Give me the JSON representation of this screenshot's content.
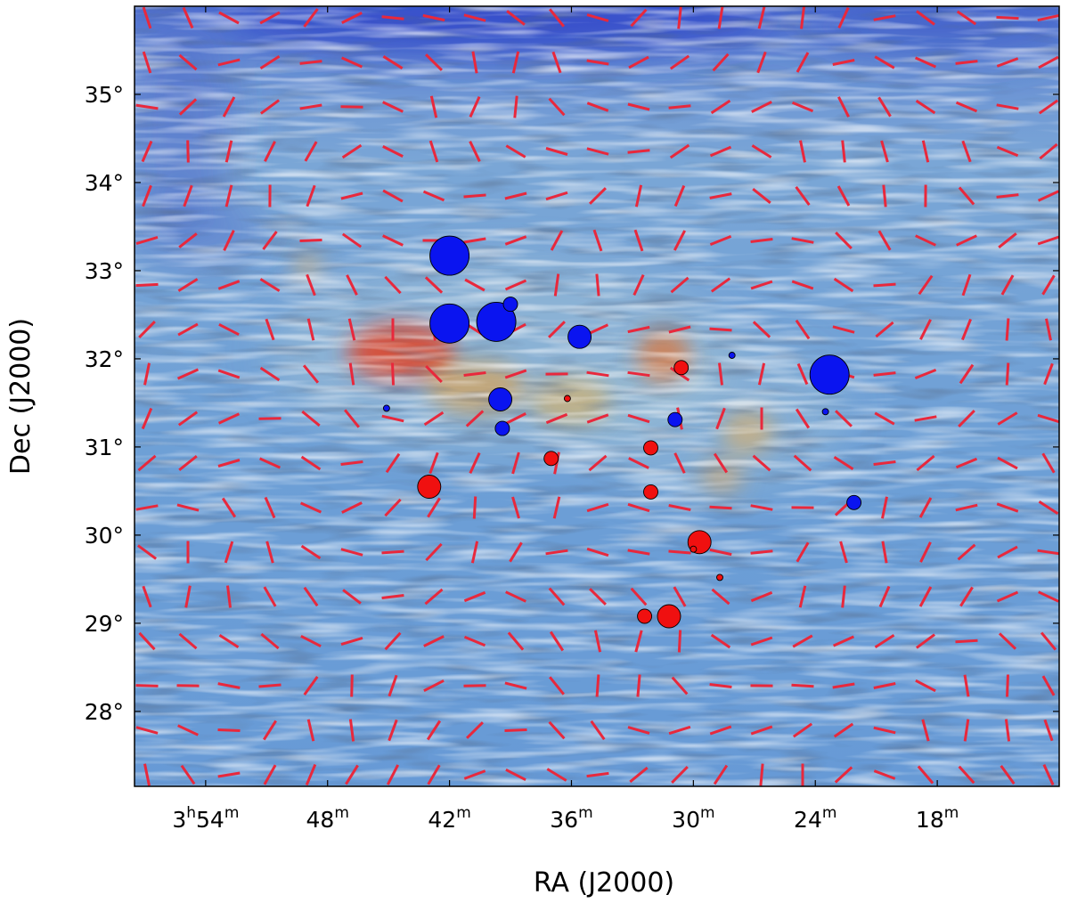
{
  "chart_data": {
    "type": "scatter",
    "xlabel": "RA (J2000)",
    "ylabel": "Dec (J2000)",
    "x_unit": "minutes of RA (3h)",
    "xlim": [
      57.5,
      12.0
    ],
    "ylim": [
      27.15,
      36.0
    ],
    "x_ticks": [
      {
        "value": 54,
        "label_main": "3",
        "label_sup1": "h",
        "label_mid": "54",
        "label_sup2": "m"
      },
      {
        "value": 48,
        "label_main": "48",
        "label_sup1": "m"
      },
      {
        "value": 42,
        "label_main": "42",
        "label_sup1": "m"
      },
      {
        "value": 36,
        "label_main": "36",
        "label_sup1": "m"
      },
      {
        "value": 30,
        "label_main": "30",
        "label_sup1": "m"
      },
      {
        "value": 24,
        "label_main": "24",
        "label_sup1": "m"
      },
      {
        "value": 18,
        "label_main": "18",
        "label_sup1": "m"
      }
    ],
    "y_ticks": [
      {
        "value": 28,
        "label": "28°"
      },
      {
        "value": 29,
        "label": "29°"
      },
      {
        "value": 30,
        "label": "30°"
      },
      {
        "value": 31,
        "label": "31°"
      },
      {
        "value": 32,
        "label": "32°"
      },
      {
        "value": 33,
        "label": "33°"
      },
      {
        "value": 34,
        "label": "34°"
      },
      {
        "value": 35,
        "label": "35°"
      }
    ],
    "background": "polarization texture (LIC) map with dust emission; red bars show magnetic field orientation",
    "colors": {
      "blue_points": "#0a14f0",
      "red_points": "#f01010",
      "vector_bars": "#e8283c",
      "map_base": "#6a9ad2",
      "dense_gas": "#e0402a"
    },
    "series": [
      {
        "color": "blue",
        "points": [
          {
            "ra_min": 42.0,
            "dec": 33.17,
            "size": 3
          },
          {
            "ra_min": 42.0,
            "dec": 32.4,
            "size": 3
          },
          {
            "ra_min": 39.7,
            "dec": 32.42,
            "size": 3
          },
          {
            "ra_min": 39.0,
            "dec": 32.62,
            "size": 1
          },
          {
            "ra_min": 35.6,
            "dec": 32.25,
            "size": 2
          },
          {
            "ra_min": 39.5,
            "dec": 31.54,
            "size": 2
          },
          {
            "ra_min": 39.4,
            "dec": 31.21,
            "size": 1
          },
          {
            "ra_min": 45.1,
            "dec": 31.44,
            "size": 0
          },
          {
            "ra_min": 30.9,
            "dec": 31.31,
            "size": 1
          },
          {
            "ra_min": 28.1,
            "dec": 32.04,
            "size": 0
          },
          {
            "ra_min": 23.3,
            "dec": 31.82,
            "size": 3
          },
          {
            "ra_min": 23.5,
            "dec": 31.4,
            "size": 0
          },
          {
            "ra_min": 22.1,
            "dec": 30.37,
            "size": 1
          }
        ]
      },
      {
        "color": "red",
        "points": [
          {
            "ra_min": 30.6,
            "dec": 31.9,
            "size": 1
          },
          {
            "ra_min": 36.2,
            "dec": 31.55,
            "size": 0
          },
          {
            "ra_min": 32.1,
            "dec": 30.99,
            "size": 1
          },
          {
            "ra_min": 37.0,
            "dec": 30.87,
            "size": 1
          },
          {
            "ra_min": 32.1,
            "dec": 30.49,
            "size": 1
          },
          {
            "ra_min": 43.0,
            "dec": 30.55,
            "size": 2
          },
          {
            "ra_min": 29.7,
            "dec": 29.92,
            "size": 2
          },
          {
            "ra_min": 30.0,
            "dec": 29.84,
            "size": 0
          },
          {
            "ra_min": 28.7,
            "dec": 29.52,
            "size": 0
          },
          {
            "ra_min": 32.4,
            "dec": 29.08,
            "size": 1
          },
          {
            "ra_min": 31.2,
            "dec": 29.08,
            "size": 2
          }
        ]
      }
    ]
  }
}
